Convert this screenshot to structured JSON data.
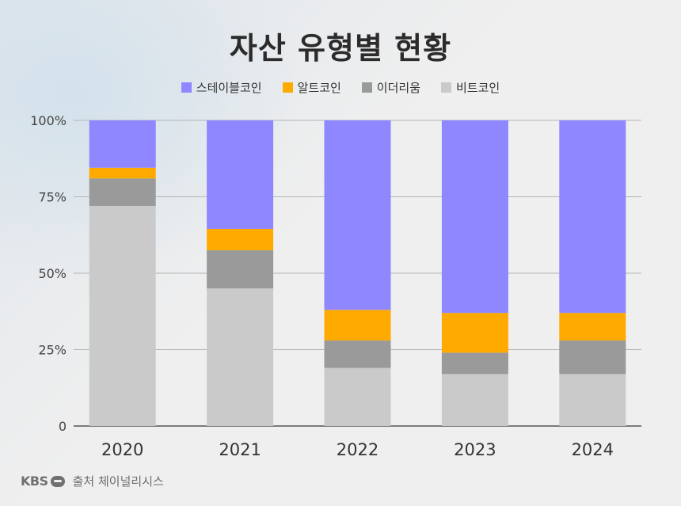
{
  "title": "자산 유형별 현황",
  "footer": {
    "logo": "KBS",
    "source": "출처 체이널리시스"
  },
  "colors": {
    "stablecoin": "#8e87ff",
    "altcoin": "#ffaa00",
    "ethereum": "#9a9a9a",
    "bitcoin": "#cacaca"
  },
  "chart_data": {
    "type": "bar",
    "stacked": true,
    "title": "자산 유형별 현황",
    "categories": [
      "2020",
      "2021",
      "2022",
      "2023",
      "2024"
    ],
    "series": [
      {
        "name": "비트코인",
        "key": "bitcoin",
        "values": [
          72,
          45,
          19,
          17,
          17
        ]
      },
      {
        "name": "이더리움",
        "key": "ethereum",
        "values": [
          9,
          12.5,
          9,
          7,
          11
        ]
      },
      {
        "name": "알트코인",
        "key": "altcoin",
        "values": [
          3.5,
          7,
          10,
          13,
          9
        ]
      },
      {
        "name": "스테이블코인",
        "key": "stablecoin",
        "values": [
          15.5,
          35.5,
          62,
          63,
          63
        ]
      }
    ],
    "legend_order": [
      "스테이블코인",
      "알트코인",
      "이더리움",
      "비트코인"
    ],
    "ylim": [
      0,
      100
    ],
    "yticks": [
      "0",
      "25%",
      "50%",
      "75%",
      "100%"
    ],
    "ytick_values": [
      0,
      25,
      50,
      75,
      100
    ],
    "grid": true,
    "legend_position": "top"
  }
}
